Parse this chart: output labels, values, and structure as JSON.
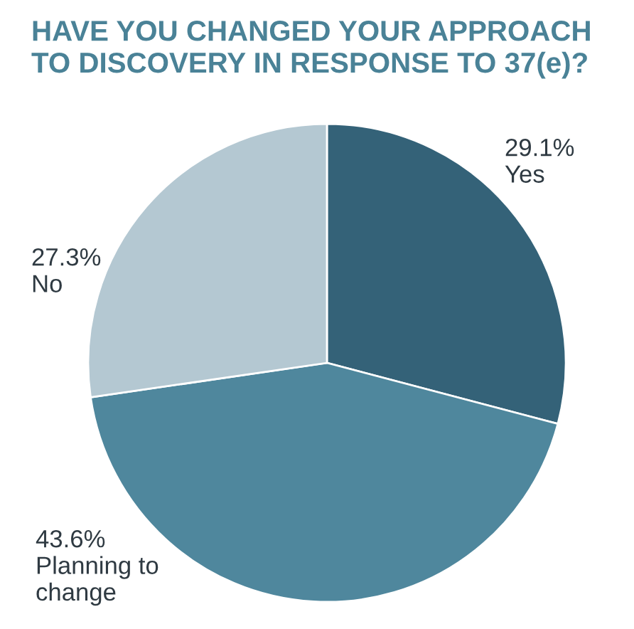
{
  "chart_data": {
    "type": "pie",
    "title": "HAVE YOU CHANGED YOUR APPROACH\nTO DISCOVERY IN RESPONSE TO 37(e)?",
    "categories": [
      "Yes",
      "Planning to change",
      "No"
    ],
    "values": [
      29.1,
      43.6,
      27.3
    ],
    "colors": [
      "#346278",
      "#4f879d",
      "#b4c8d2"
    ],
    "value_labels": [
      "29.1%",
      "43.6%",
      "27.3%"
    ],
    "legend": false
  }
}
